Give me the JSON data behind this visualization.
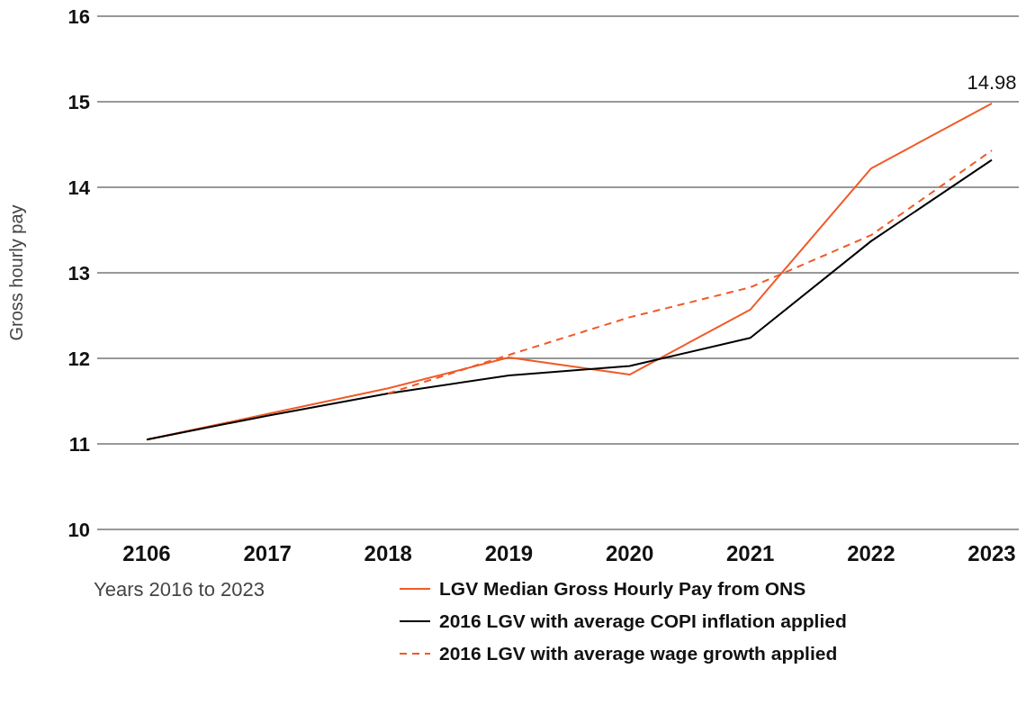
{
  "chart_data": {
    "type": "line",
    "ylabel": "Gross hourly pay",
    "xlabel": "Years 2016 to 2023",
    "categories": [
      "2106",
      "2017",
      "2018",
      "2019",
      "2020",
      "2021",
      "2022",
      "2023"
    ],
    "ylim": [
      10,
      16
    ],
    "yticks": [
      10,
      11,
      12,
      13,
      14,
      15,
      16
    ],
    "grid": "y",
    "legend": "bottom",
    "marker": "none",
    "series": [
      {
        "name": "LGV Median Gross Hourly Pay from ONS",
        "color": "#f05a28",
        "line_style": "solid",
        "values": [
          11.05,
          11.35,
          11.65,
          12.01,
          11.81,
          12.57,
          14.22,
          14.98
        ],
        "value_labels": [
          null,
          null,
          null,
          null,
          null,
          null,
          null,
          "14.98"
        ]
      },
      {
        "name": "2016 LGV with average COPI inflation applied",
        "color": "#000000",
        "line_style": "solid",
        "values": [
          11.05,
          11.33,
          11.59,
          11.8,
          11.91,
          12.24,
          13.37,
          14.32
        ]
      },
      {
        "name": "2016 LGV with average wage growth applied",
        "color": "#f05a28",
        "line_style": "dashed",
        "values": [
          null,
          null,
          11.59,
          12.04,
          12.48,
          12.83,
          13.44,
          14.43
        ]
      }
    ]
  }
}
